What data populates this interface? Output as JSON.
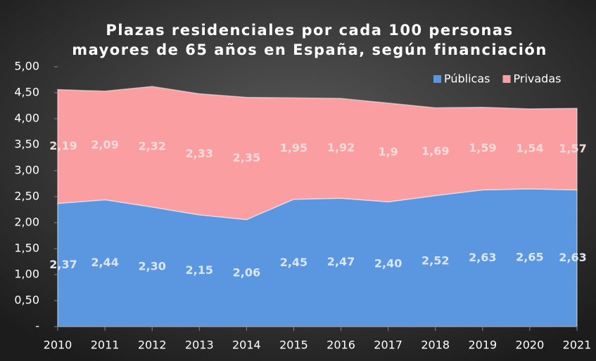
{
  "chart_data": {
    "type": "stacked_area",
    "title": [
      "Plazas residenciales por cada 100 personas",
      "mayores de 65 años en España, según financiación"
    ],
    "categories": [
      "2010",
      "2011",
      "2012",
      "2013",
      "2014",
      "2015",
      "2016",
      "2017",
      "2018",
      "2019",
      "2020",
      "2021"
    ],
    "series": [
      {
        "name": "Públicas",
        "color": "#5b96e0",
        "values": [
          2.37,
          2.44,
          2.3,
          2.15,
          2.06,
          2.45,
          2.47,
          2.4,
          2.52,
          2.63,
          2.65,
          2.63
        ],
        "value_labels": [
          "2,37",
          "2,44",
          "2,30",
          "2,15",
          "2,06",
          "2,45",
          "2,47",
          "2,40",
          "2,52",
          "2,63",
          "2,65",
          "2,63"
        ]
      },
      {
        "name": "Privadas",
        "color": "#fb9ea2",
        "values": [
          2.19,
          2.09,
          2.32,
          2.33,
          2.35,
          1.95,
          1.92,
          1.9,
          1.69,
          1.59,
          1.54,
          1.57
        ],
        "value_labels": [
          "2,19",
          "2,09",
          "2,32",
          "2,33",
          "2,35",
          "1,95",
          "1,92",
          "1,9",
          "1,69",
          "1,59",
          "1,54",
          "1,57"
        ]
      }
    ],
    "ylim": [
      0,
      5
    ],
    "yticks": [
      {
        "value": 0,
        "label": "-"
      },
      {
        "value": 0.5,
        "label": "0,50"
      },
      {
        "value": 1,
        "label": "1,00"
      },
      {
        "value": 1.5,
        "label": "1,50"
      },
      {
        "value": 2,
        "label": "2,00"
      },
      {
        "value": 2.5,
        "label": "2,50"
      },
      {
        "value": 3,
        "label": "3,00"
      },
      {
        "value": 3.5,
        "label": "3,50"
      },
      {
        "value": 4,
        "label": "4,00"
      },
      {
        "value": 4.5,
        "label": "4,50"
      },
      {
        "value": 5,
        "label": "5,00"
      }
    ],
    "legend": "top-right"
  }
}
